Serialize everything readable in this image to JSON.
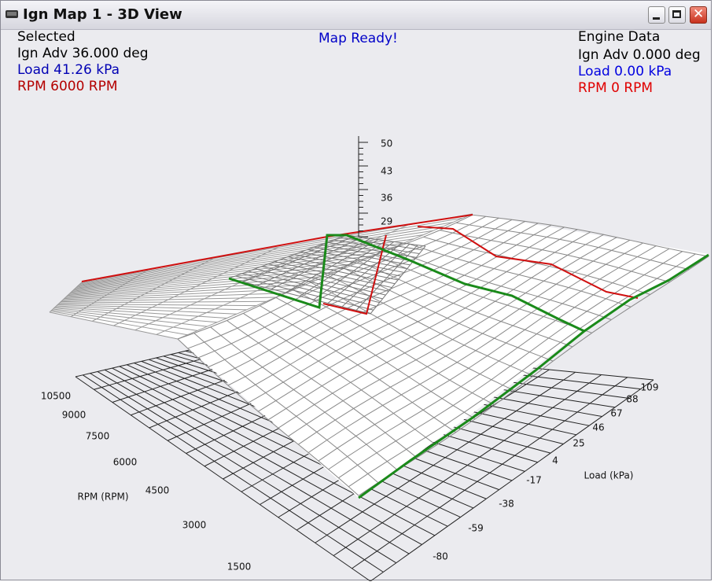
{
  "window": {
    "title": "Ign Map 1 - 3D View"
  },
  "status": "Map Ready!",
  "selected": {
    "heading": "Selected",
    "ign_adv": "Ign Adv 36.000 deg",
    "load": "Load 41.26 kPa",
    "rpm": "RPM 6000 RPM"
  },
  "engine_data": {
    "heading": "Engine Data",
    "ign_adv": "Ign Adv 0.000 deg",
    "load": "Load 0.00 kPa",
    "rpm": "RPM 0 RPM"
  },
  "plot": {
    "z_ticks": [
      "50",
      "43",
      "36",
      "29"
    ],
    "rpm_axis": {
      "label": "RPM (RPM)",
      "ticks": [
        "10500",
        "9000",
        "7500",
        "6000",
        "4500",
        "3000",
        "1500"
      ]
    },
    "load_axis": {
      "label": "Load (kPa)",
      "ticks": [
        "109",
        "88",
        "67",
        "46",
        "25",
        "4",
        "-17",
        "-38",
        "-59",
        "-80"
      ]
    }
  }
}
